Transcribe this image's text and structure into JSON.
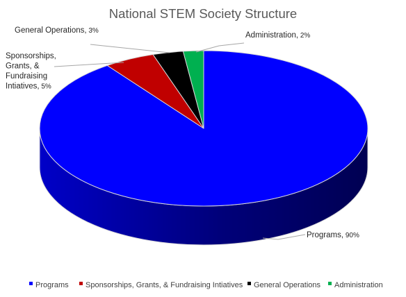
{
  "chart_data": {
    "type": "pie",
    "title": "National STEM Society Structure",
    "style": "3d",
    "slices": [
      {
        "name": "Programs",
        "label_lines": [
          "Programs,"
        ],
        "pct_text": "90%",
        "value": 90,
        "color": "#0000ff",
        "side_color": "#00007a"
      },
      {
        "name": "Sponsorships, Grants, & Fundraising Intiatives",
        "label_lines": [
          "Sponsorships,",
          "Grants, &",
          "Fundraising",
          "Intiatives,"
        ],
        "pct_text": "5%",
        "value": 5,
        "color": "#c00000",
        "side_color": "#6e0000"
      },
      {
        "name": "General Operations",
        "label_lines": [
          "General Operations,"
        ],
        "pct_text": "3%",
        "value": 3,
        "color": "#000000",
        "side_color": "#000000"
      },
      {
        "name": "Administration",
        "label_lines": [
          "Administration,"
        ],
        "pct_text": "2%",
        "value": 2,
        "color": "#00b050",
        "side_color": "#006b30"
      }
    ],
    "legend": {
      "position": "bottom",
      "entries": [
        "Programs",
        "Sponsorships, Grants, & Fundraising Intiatives",
        "General Operations",
        "Administration"
      ]
    }
  }
}
